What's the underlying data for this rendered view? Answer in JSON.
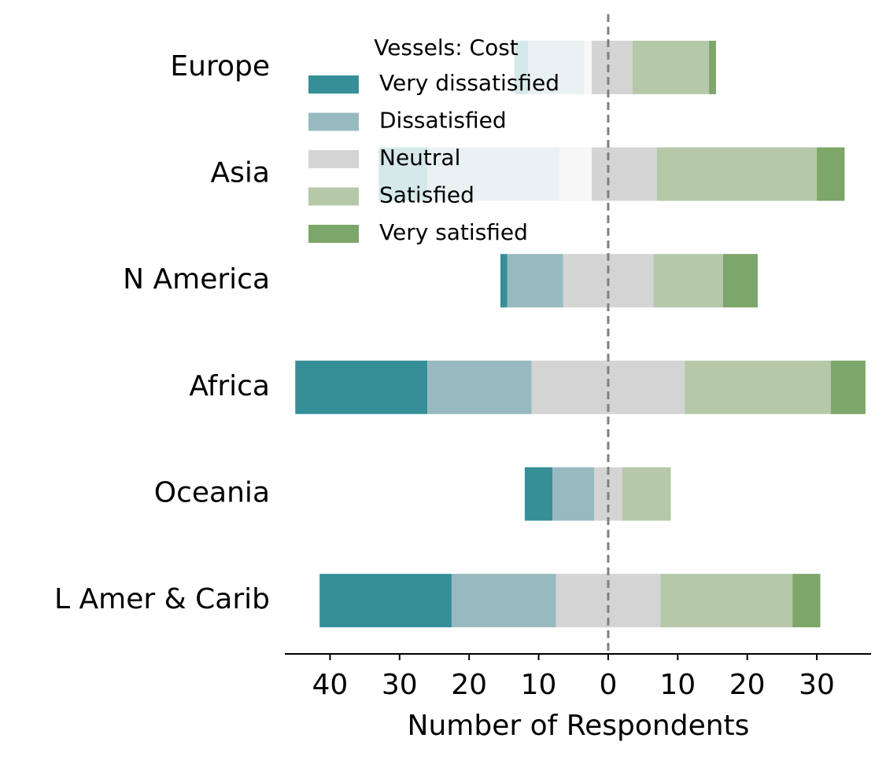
{
  "chart_data": {
    "type": "diverging_bar",
    "xlabel": "Number of Respondents",
    "legend_title": "Vessels: Cost",
    "legend_position": "upper left",
    "grid": false,
    "categories": [
      "Europe",
      "Asia",
      "N America",
      "Africa",
      "Oceania",
      "L Amer & Carib"
    ],
    "series": [
      {
        "name": "Very dissatisfied",
        "color": "#368f97",
        "values": [
          2,
          7,
          1,
          19,
          4,
          19
        ]
      },
      {
        "name": "Dissatisfied",
        "color": "#97bac0",
        "values": [
          8,
          19,
          8,
          15,
          6,
          15
        ]
      },
      {
        "name": "Neutral",
        "color": "#d4d4d4",
        "values": [
          7,
          14,
          13,
          22,
          4,
          15
        ]
      },
      {
        "name": "Satisfied",
        "color": "#b5c9a9",
        "values": [
          11,
          23,
          10,
          21,
          7,
          19
        ]
      },
      {
        "name": "Very satisfied",
        "color": "#7da66a",
        "values": [
          1,
          4,
          5,
          5,
          0,
          4
        ]
      }
    ],
    "xlim": [
      -46.5,
      37.8
    ],
    "xticks": [
      {
        "value": -40,
        "label": "40"
      },
      {
        "value": -30,
        "label": "30"
      },
      {
        "value": -20,
        "label": "20"
      },
      {
        "value": -10,
        "label": "10"
      },
      0,
      10,
      20,
      30
    ]
  }
}
